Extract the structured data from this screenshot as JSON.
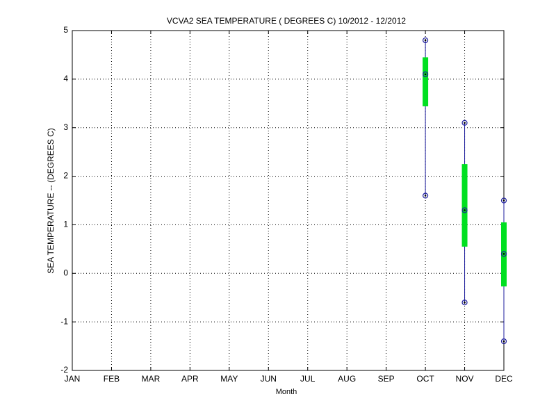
{
  "chart_data": {
    "type": "range-box",
    "title": "VCVA2  SEA TEMPERATURE ( DEGREES C) 10/2012 - 12/2012",
    "xlabel": "Month",
    "ylabel": "SEA TEMPERATURE -- (DEGREES C)",
    "categories": [
      "JAN",
      "FEB",
      "MAR",
      "APR",
      "MAY",
      "JUN",
      "JUL",
      "AUG",
      "SEP",
      "OCT",
      "NOV",
      "DEC"
    ],
    "max": [
      null,
      null,
      null,
      null,
      null,
      null,
      null,
      null,
      null,
      4.8,
      3.1,
      1.5
    ],
    "mean": [
      null,
      null,
      null,
      null,
      null,
      null,
      null,
      null,
      null,
      4.1,
      1.3,
      0.4
    ],
    "min": [
      null,
      null,
      null,
      null,
      null,
      null,
      null,
      null,
      null,
      1.6,
      -0.6,
      -1.4
    ],
    "box_low": [
      null,
      null,
      null,
      null,
      null,
      null,
      null,
      null,
      null,
      3.44,
      0.55,
      -0.27
    ],
    "box_high": [
      null,
      null,
      null,
      null,
      null,
      null,
      null,
      null,
      null,
      4.45,
      2.25,
      1.05
    ],
    "line_color": "#1c1c9c",
    "box_color": "#00e020",
    "ylim": [
      -2,
      5
    ],
    "yticks": [
      -2,
      -1,
      0,
      1,
      2,
      3,
      4,
      5
    ],
    "grid": true
  }
}
